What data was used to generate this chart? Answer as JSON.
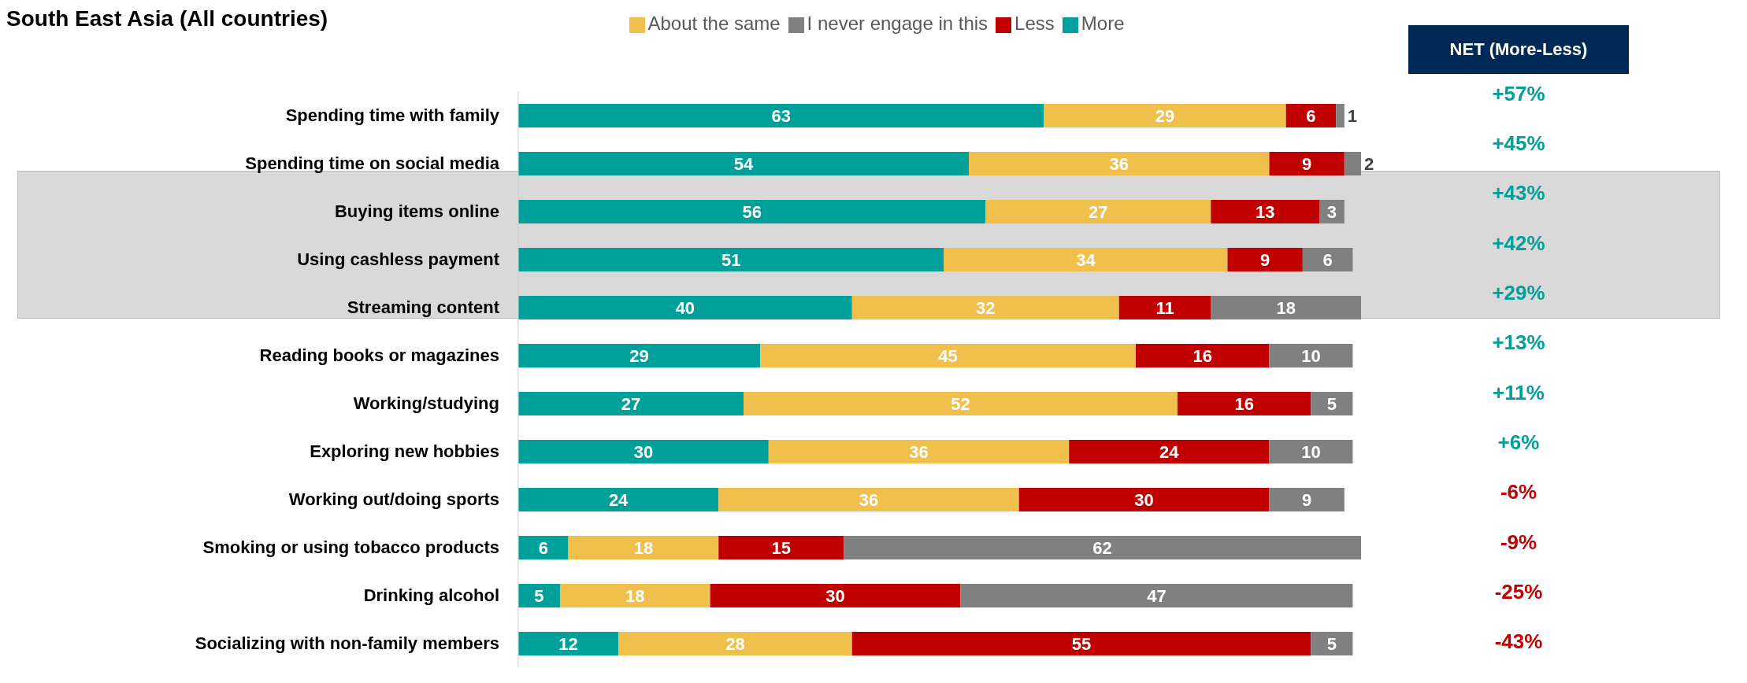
{
  "chart_data": {
    "type": "bar",
    "orientation": "horizontal",
    "stacked": true,
    "data_labels": true,
    "legend": "top",
    "grid": false,
    "title": "South East Asia (All countries)",
    "categories": [
      "Spending time with family",
      "Spending time on social media",
      "Buying items online",
      "Using cashless payment",
      "Streaming content",
      "Reading books or magazines",
      "Working/studying",
      "Exploring new hobbies",
      "Working out/doing sports",
      "Smoking or using tobacco products",
      "Drinking alcohol",
      "Socializing with non-family members"
    ],
    "series": [
      {
        "name": "More",
        "color": "#00a09a",
        "values": [
          63,
          54,
          56,
          51,
          40,
          29,
          27,
          30,
          24,
          6,
          5,
          12
        ]
      },
      {
        "name": "About the same",
        "color": "#f0bf4c",
        "values": [
          29,
          36,
          27,
          34,
          32,
          45,
          52,
          36,
          36,
          18,
          18,
          28
        ]
      },
      {
        "name": "Less",
        "color": "#c00000",
        "values": [
          6,
          9,
          13,
          9,
          11,
          16,
          16,
          24,
          30,
          15,
          30,
          55
        ]
      },
      {
        "name": "I never engage in this",
        "color": "#808080",
        "values": [
          1,
          2,
          3,
          6,
          18,
          10,
          5,
          10,
          9,
          62,
          47,
          5
        ]
      }
    ],
    "annotations": [
      "NET (More-Less)",
      "+57%",
      "+45%",
      "+43%",
      "+42%",
      "+29%",
      "+13%",
      "+11%",
      "+6%",
      "-6%",
      "-9%",
      "-25%",
      "-43%"
    ]
  }
}
